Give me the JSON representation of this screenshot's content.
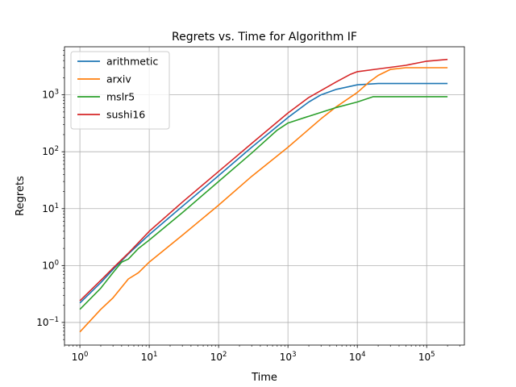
{
  "chart_data": {
    "type": "line",
    "title": "Regrets vs. Time for Algorithm IF",
    "xlabel": "Time",
    "ylabel": "Regrets",
    "xscale": "log",
    "yscale": "log",
    "xlim": [
      0.6,
      350000
    ],
    "ylim": [
      0.04,
      7000
    ],
    "grid": true,
    "legend_position": "upper-left",
    "x_ticks": [
      {
        "value": 1,
        "base": "10",
        "exp": "0"
      },
      {
        "value": 10,
        "base": "10",
        "exp": "1"
      },
      {
        "value": 100,
        "base": "10",
        "exp": "2"
      },
      {
        "value": 1000,
        "base": "10",
        "exp": "3"
      },
      {
        "value": 10000,
        "base": "10",
        "exp": "4"
      },
      {
        "value": 100000,
        "base": "10",
        "exp": "5"
      }
    ],
    "y_ticks": [
      {
        "value": 0.1,
        "base": "10",
        "exp": "−1"
      },
      {
        "value": 1,
        "base": "10",
        "exp": "0"
      },
      {
        "value": 10,
        "base": "10",
        "exp": "1"
      },
      {
        "value": 100,
        "base": "10",
        "exp": "2"
      },
      {
        "value": 1000,
        "base": "10",
        "exp": "3"
      }
    ],
    "series": [
      {
        "name": "arithmetic",
        "color": "#1f77b4",
        "points": [
          [
            1,
            0.22
          ],
          [
            2,
            0.5
          ],
          [
            3,
            0.85
          ],
          [
            5,
            1.6
          ],
          [
            10,
            3.5
          ],
          [
            30,
            11
          ],
          [
            100,
            38
          ],
          [
            300,
            120
          ],
          [
            1000,
            400
          ],
          [
            2000,
            750
          ],
          [
            3000,
            1000
          ],
          [
            5000,
            1250
          ],
          [
            10000,
            1500
          ],
          [
            20000,
            1580
          ],
          [
            200000,
            1580
          ]
        ]
      },
      {
        "name": "arxiv",
        "color": "#ff7f0e",
        "points": [
          [
            1,
            0.068
          ],
          [
            2,
            0.17
          ],
          [
            3,
            0.27
          ],
          [
            5,
            0.58
          ],
          [
            7,
            0.75
          ],
          [
            10,
            1.15
          ],
          [
            30,
            3.4
          ],
          [
            100,
            11.5
          ],
          [
            300,
            37
          ],
          [
            1000,
            120
          ],
          [
            3000,
            380
          ],
          [
            5000,
            620
          ],
          [
            10000,
            1100
          ],
          [
            15000,
            1700
          ],
          [
            20000,
            2200
          ],
          [
            30000,
            2800
          ],
          [
            50000,
            3000
          ],
          [
            200000,
            3000
          ]
        ]
      },
      {
        "name": "mslr5",
        "color": "#2ca02c",
        "points": [
          [
            1,
            0.17
          ],
          [
            2,
            0.4
          ],
          [
            3,
            0.75
          ],
          [
            4,
            1.15
          ],
          [
            5,
            1.3
          ],
          [
            7,
            2
          ],
          [
            10,
            2.8
          ],
          [
            30,
            8.5
          ],
          [
            100,
            30
          ],
          [
            300,
            95
          ],
          [
            700,
            240
          ],
          [
            1000,
            320
          ],
          [
            2000,
            420
          ],
          [
            5000,
            600
          ],
          [
            10000,
            750
          ],
          [
            17000,
            930
          ],
          [
            200000,
            930
          ]
        ]
      },
      {
        "name": "sushi16",
        "color": "#d62728",
        "points": [
          [
            1,
            0.24
          ],
          [
            2,
            0.55
          ],
          [
            3,
            0.9
          ],
          [
            5,
            1.65
          ],
          [
            10,
            4
          ],
          [
            30,
            13
          ],
          [
            100,
            45
          ],
          [
            300,
            140
          ],
          [
            1000,
            480
          ],
          [
            2000,
            900
          ],
          [
            5000,
            1700
          ],
          [
            8000,
            2300
          ],
          [
            10000,
            2550
          ],
          [
            20000,
            2850
          ],
          [
            50000,
            3300
          ],
          [
            100000,
            3900
          ],
          [
            200000,
            4200
          ]
        ]
      }
    ]
  }
}
